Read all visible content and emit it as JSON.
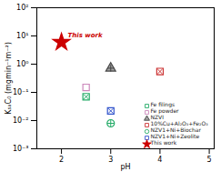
{
  "chart_data": {
    "type": "scatter",
    "xlabel": "pH",
    "ylabel": "KₛₐC₀ (mgmin⁻¹m⁻²)",
    "xlim": [
      1.5,
      5.1
    ],
    "ylim": [
      0.001,
      100
    ],
    "xticks": [
      2,
      3,
      4,
      5
    ],
    "yticks": [
      {
        "value": 0.001,
        "label": "10⁻³"
      },
      {
        "value": 0.01,
        "label": "10⁻²"
      },
      {
        "value": 0.1,
        "label": "10⁻¹"
      },
      {
        "value": 1,
        "label": "10⁰"
      },
      {
        "value": 10,
        "label": "10¹"
      },
      {
        "value": 100,
        "label": "10²"
      }
    ],
    "log": "y",
    "grid": false,
    "legend": "lower right",
    "series": [
      {
        "name": "Fe filings",
        "color": "#22aa66",
        "marker": "square-x",
        "x": [
          2.5
        ],
        "values": [
          0.07
        ]
      },
      {
        "name": "Fe powder",
        "color": "#cc88bb",
        "marker": "square",
        "x": [
          2.5
        ],
        "values": [
          0.15
        ]
      },
      {
        "name": "NZVI",
        "color": "#444444",
        "marker": "triangle-plus",
        "x": [
          3.0
        ],
        "values": [
          0.72
        ]
      },
      {
        "name": "10%Cu+Al₂O₃+Fe₂O₃",
        "color": "#cc3333",
        "marker": "square-x",
        "x": [
          4.0
        ],
        "values": [
          0.55
        ]
      },
      {
        "name": "NZV1+Ni+Biochar",
        "color": "#22aa66",
        "marker": "circle-plus",
        "x": [
          3.0
        ],
        "values": [
          0.008
        ]
      },
      {
        "name": "NZV1+Ni+Zeolite",
        "color": "#3355cc",
        "marker": "square-x",
        "x": [
          3.0
        ],
        "values": [
          0.022
        ]
      },
      {
        "name": "This work",
        "color": "#cc0000",
        "marker": "star",
        "x": [
          2.0
        ],
        "values": [
          6.0
        ]
      }
    ],
    "annotations": [
      {
        "text": "This work",
        "x": 2.0,
        "y": 6.0,
        "color": "#cc0000"
      }
    ]
  }
}
